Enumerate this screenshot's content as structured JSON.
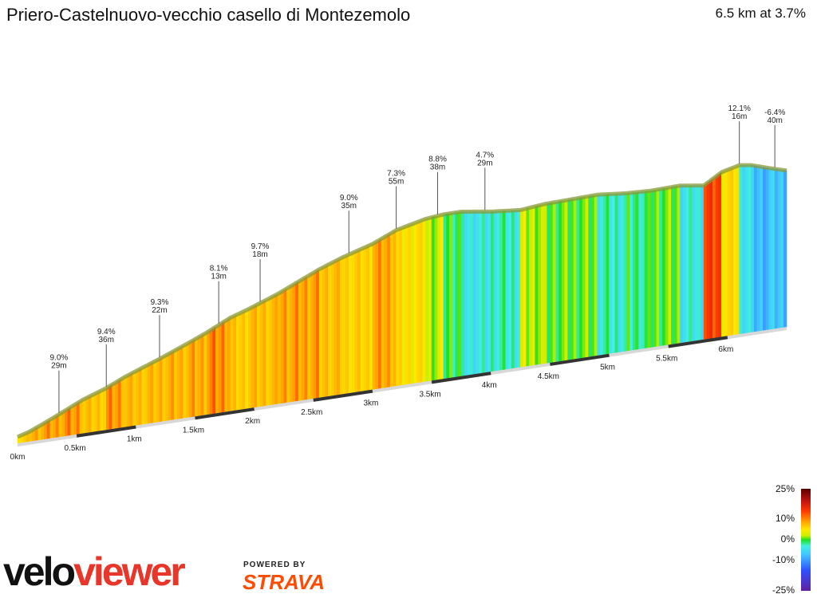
{
  "title": "Priero-Castelnuovo-vecchio casello di Montezemolo",
  "summary": "6.5 km at 3.7%",
  "chart_data": {
    "type": "area",
    "title": "Priero-Castelnuovo-vecchio casello di Montezemolo",
    "xlabel": "",
    "ylabel": "",
    "distance_unit": "km",
    "xlim": [
      0,
      6.5
    ],
    "x_ticks": [
      "0km",
      "0.5km",
      "1km",
      "1.5km",
      "2km",
      "2.5km",
      "3km",
      "3.5km",
      "4km",
      "4.5km",
      "5km",
      "5.5km",
      "6km"
    ],
    "profile_gradient_percent": [
      {
        "x": 0.0,
        "g": 1.0
      },
      {
        "x": 0.1,
        "g": 6.0
      },
      {
        "x": 0.2,
        "g": 8.5
      },
      {
        "x": 0.35,
        "g": 9.0
      },
      {
        "x": 0.55,
        "g": 9.4
      },
      {
        "x": 0.75,
        "g": 7.0
      },
      {
        "x": 0.9,
        "g": 9.3
      },
      {
        "x": 1.2,
        "g": 7.5
      },
      {
        "x": 1.45,
        "g": 8.1
      },
      {
        "x": 1.6,
        "g": 8.5
      },
      {
        "x": 1.8,
        "g": 9.7
      },
      {
        "x": 1.95,
        "g": 6.5
      },
      {
        "x": 2.2,
        "g": 7.5
      },
      {
        "x": 2.55,
        "g": 9.0
      },
      {
        "x": 2.75,
        "g": 7.3
      },
      {
        "x": 3.0,
        "g": 6.0
      },
      {
        "x": 3.2,
        "g": 8.8
      },
      {
        "x": 3.45,
        "g": 4.7
      },
      {
        "x": 3.6,
        "g": 2.0
      },
      {
        "x": 3.75,
        "g": 0.0
      },
      {
        "x": 4.0,
        "g": -3.0
      },
      {
        "x": 4.25,
        "g": -2.0
      },
      {
        "x": 4.45,
        "g": 2.0
      },
      {
        "x": 4.7,
        "g": 0.5
      },
      {
        "x": 4.9,
        "g": 0.5
      },
      {
        "x": 5.15,
        "g": -2.0
      },
      {
        "x": 5.35,
        "g": -1.0
      },
      {
        "x": 5.6,
        "g": 0.5
      },
      {
        "x": 5.8,
        "g": -3.0
      },
      {
        "x": 5.95,
        "g": 12.1
      },
      {
        "x": 6.1,
        "g": 5.0
      },
      {
        "x": 6.2,
        "g": -3.0
      },
      {
        "x": 6.35,
        "g": -6.4
      },
      {
        "x": 6.5,
        "g": -6.0
      }
    ],
    "annotations": [
      {
        "x": 0.35,
        "grade": "9.0%",
        "gain": "29m"
      },
      {
        "x": 0.75,
        "grade": "9.4%",
        "gain": "36m"
      },
      {
        "x": 1.2,
        "grade": "9.3%",
        "gain": "22m"
      },
      {
        "x": 1.7,
        "grade": "8.1%",
        "gain": "13m"
      },
      {
        "x": 2.05,
        "grade": "9.7%",
        "gain": "18m"
      },
      {
        "x": 2.8,
        "grade": "9.0%",
        "gain": "35m"
      },
      {
        "x": 3.2,
        "grade": "7.3%",
        "gain": "55m"
      },
      {
        "x": 3.55,
        "grade": "8.8%",
        "gain": "38m"
      },
      {
        "x": 3.95,
        "grade": "4.7%",
        "gain": "29m"
      },
      {
        "x": 6.1,
        "grade": "12.1%",
        "gain": "16m"
      },
      {
        "x": 6.4,
        "grade": "-6.4%",
        "gain": "40m"
      }
    ],
    "legend": {
      "placement": "bottom-right",
      "labels": [
        "25%",
        "10%",
        "0%",
        "-10%",
        "-25%"
      ]
    }
  },
  "branding": {
    "velo": "velo",
    "viewer": "viewer",
    "powered_by": "POWERED BY",
    "strava": "STRAVA"
  }
}
